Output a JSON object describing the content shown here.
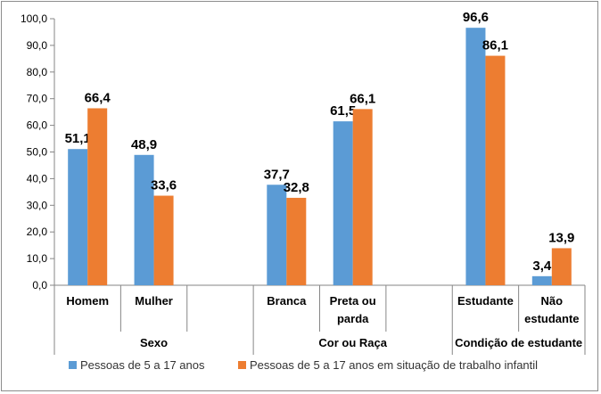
{
  "chart_data": {
    "type": "bar",
    "title": "",
    "xlabel": "",
    "ylabel": "",
    "ylim": [
      0,
      100
    ],
    "yticks": [
      "0,0",
      "10,0",
      "20,0",
      "30,0",
      "40,0",
      "50,0",
      "60,0",
      "70,0",
      "80,0",
      "90,0",
      "100,0"
    ],
    "grid": false,
    "legend_position": "bottom",
    "groups": [
      {
        "label": "Sexo",
        "categories": [
          [
            "Homem"
          ],
          [
            "Mulher"
          ]
        ]
      },
      {
        "label": "Cor ou Raça",
        "categories": [
          [
            "Branca"
          ],
          [
            "Preta ou",
            "parda"
          ]
        ]
      },
      {
        "label": "Condição de estudante",
        "categories": [
          [
            "Estudante"
          ],
          [
            "Não",
            "estudante"
          ]
        ]
      }
    ],
    "series": [
      {
        "name": "Pessoas de 5 a 17 anos",
        "color": "#5b9bd5",
        "values": [
          51.1,
          48.9,
          37.7,
          61.5,
          96.6,
          3.4
        ],
        "labels": [
          "51,1",
          "48,9",
          "37,7",
          "61,5",
          "96,6",
          "3,4"
        ]
      },
      {
        "name": "Pessoas de 5 a 17 anos em situação de trabalho infantil",
        "color": "#ed7d31",
        "values": [
          66.4,
          33.6,
          32.8,
          66.1,
          86.1,
          13.9
        ],
        "labels": [
          "66,4",
          "33,6",
          "32,8",
          "66,1",
          "86,1",
          "13,9"
        ]
      }
    ]
  }
}
